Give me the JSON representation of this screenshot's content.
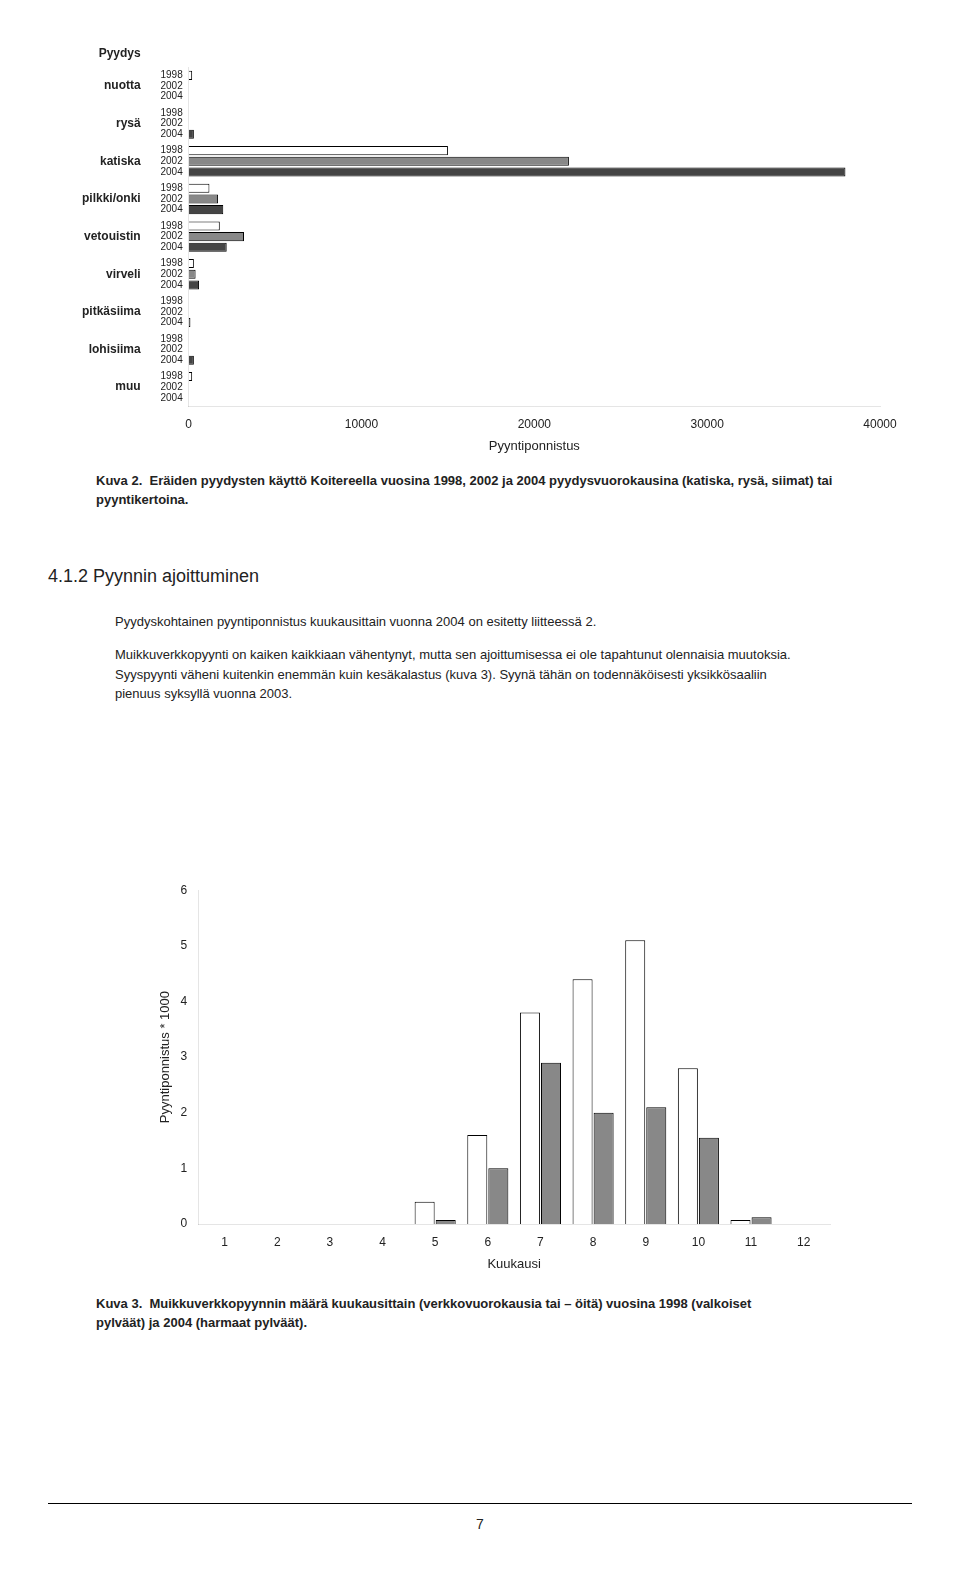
{
  "chart_data": [
    {
      "type": "bar",
      "orientation": "horizontal",
      "categories": [
        "nuotta",
        "rysä",
        "katiska",
        "pilkki/onki",
        "vetouistin",
        "virveli",
        "pitkäsiima",
        "lohisiima",
        "muu"
      ],
      "series": [
        {
          "name": "1998",
          "color": "#ffffff",
          "values": [
            200,
            0,
            15000,
            1200,
            1800,
            300,
            0,
            0,
            200
          ]
        },
        {
          "name": "2002",
          "color": "#888888",
          "values": [
            0,
            0,
            22000,
            1700,
            3200,
            400,
            0,
            0,
            0
          ]
        },
        {
          "name": "2004",
          "color": "#444444",
          "values": [
            0,
            300,
            38000,
            2000,
            2200,
            600,
            100,
            300,
            0
          ]
        }
      ],
      "xlabel": "Pyyntiponnistus",
      "xlim": [
        0,
        40000
      ],
      "xticks": [
        0,
        10000,
        20000,
        30000,
        40000
      ],
      "grid": false,
      "annotations": [
        "Pyydys",
        "Kuva 2.  Eräiden pyydysten käyttö Koitereella vuosina 1998, 2002 ja 2004 pyydysvuorokausina (katiska, rysä, siimat) tai pyyntikertoina."
      ]
    },
    {
      "type": "bar",
      "categories": [
        1,
        2,
        3,
        4,
        5,
        6,
        7,
        8,
        9,
        10,
        11,
        12
      ],
      "series": [
        {
          "name": "1998",
          "color": "#ffffff",
          "values": [
            0,
            0,
            0,
            0,
            0.4,
            1.6,
            3.8,
            4.4,
            5.1,
            2.8,
            0.07,
            0
          ]
        },
        {
          "name": "2004",
          "color": "#888888",
          "values": [
            0,
            0,
            0,
            0,
            0.07,
            1.0,
            2.9,
            2.0,
            2.1,
            1.55,
            0.12,
            0
          ]
        }
      ],
      "xlabel": "Kuukausi",
      "ylabel": "Pyyntiponnistus * 1000",
      "ylim": [
        0,
        6
      ],
      "yticks": [
        0,
        1,
        2,
        3,
        4,
        5,
        6
      ],
      "grid": false,
      "annotations": [
        "Kuva 3.  Muikkuverkkopyynnin määrä kuukausittain (verkkovuorokausia tai – öitä) vuosina 1998 (valkoiset pylväät) ja 2004 (harmaat pylväät)."
      ]
    }
  ],
  "annotations": [
    "4.1.2 Pyynnin ajoittuminen",
    "Pyydyskohtainen pyyntiponnistus kuukausittain vuonna 2004 on esitetty liitteessä 2.",
    "Muikkuverkkopyynti on kaiken kaikkiaan vähentynyt, mutta sen ajoittumisessa ei ole tapahtunut olennaisia muutoksia.  Syyspyynti väheni kuitenkin enemmän kuin kesäkalastus (kuva 3). Syynä tähän on todennäköisesti yksikkösaaliin pienuus syksyllä vuonna 2003.",
    "7"
  ]
}
